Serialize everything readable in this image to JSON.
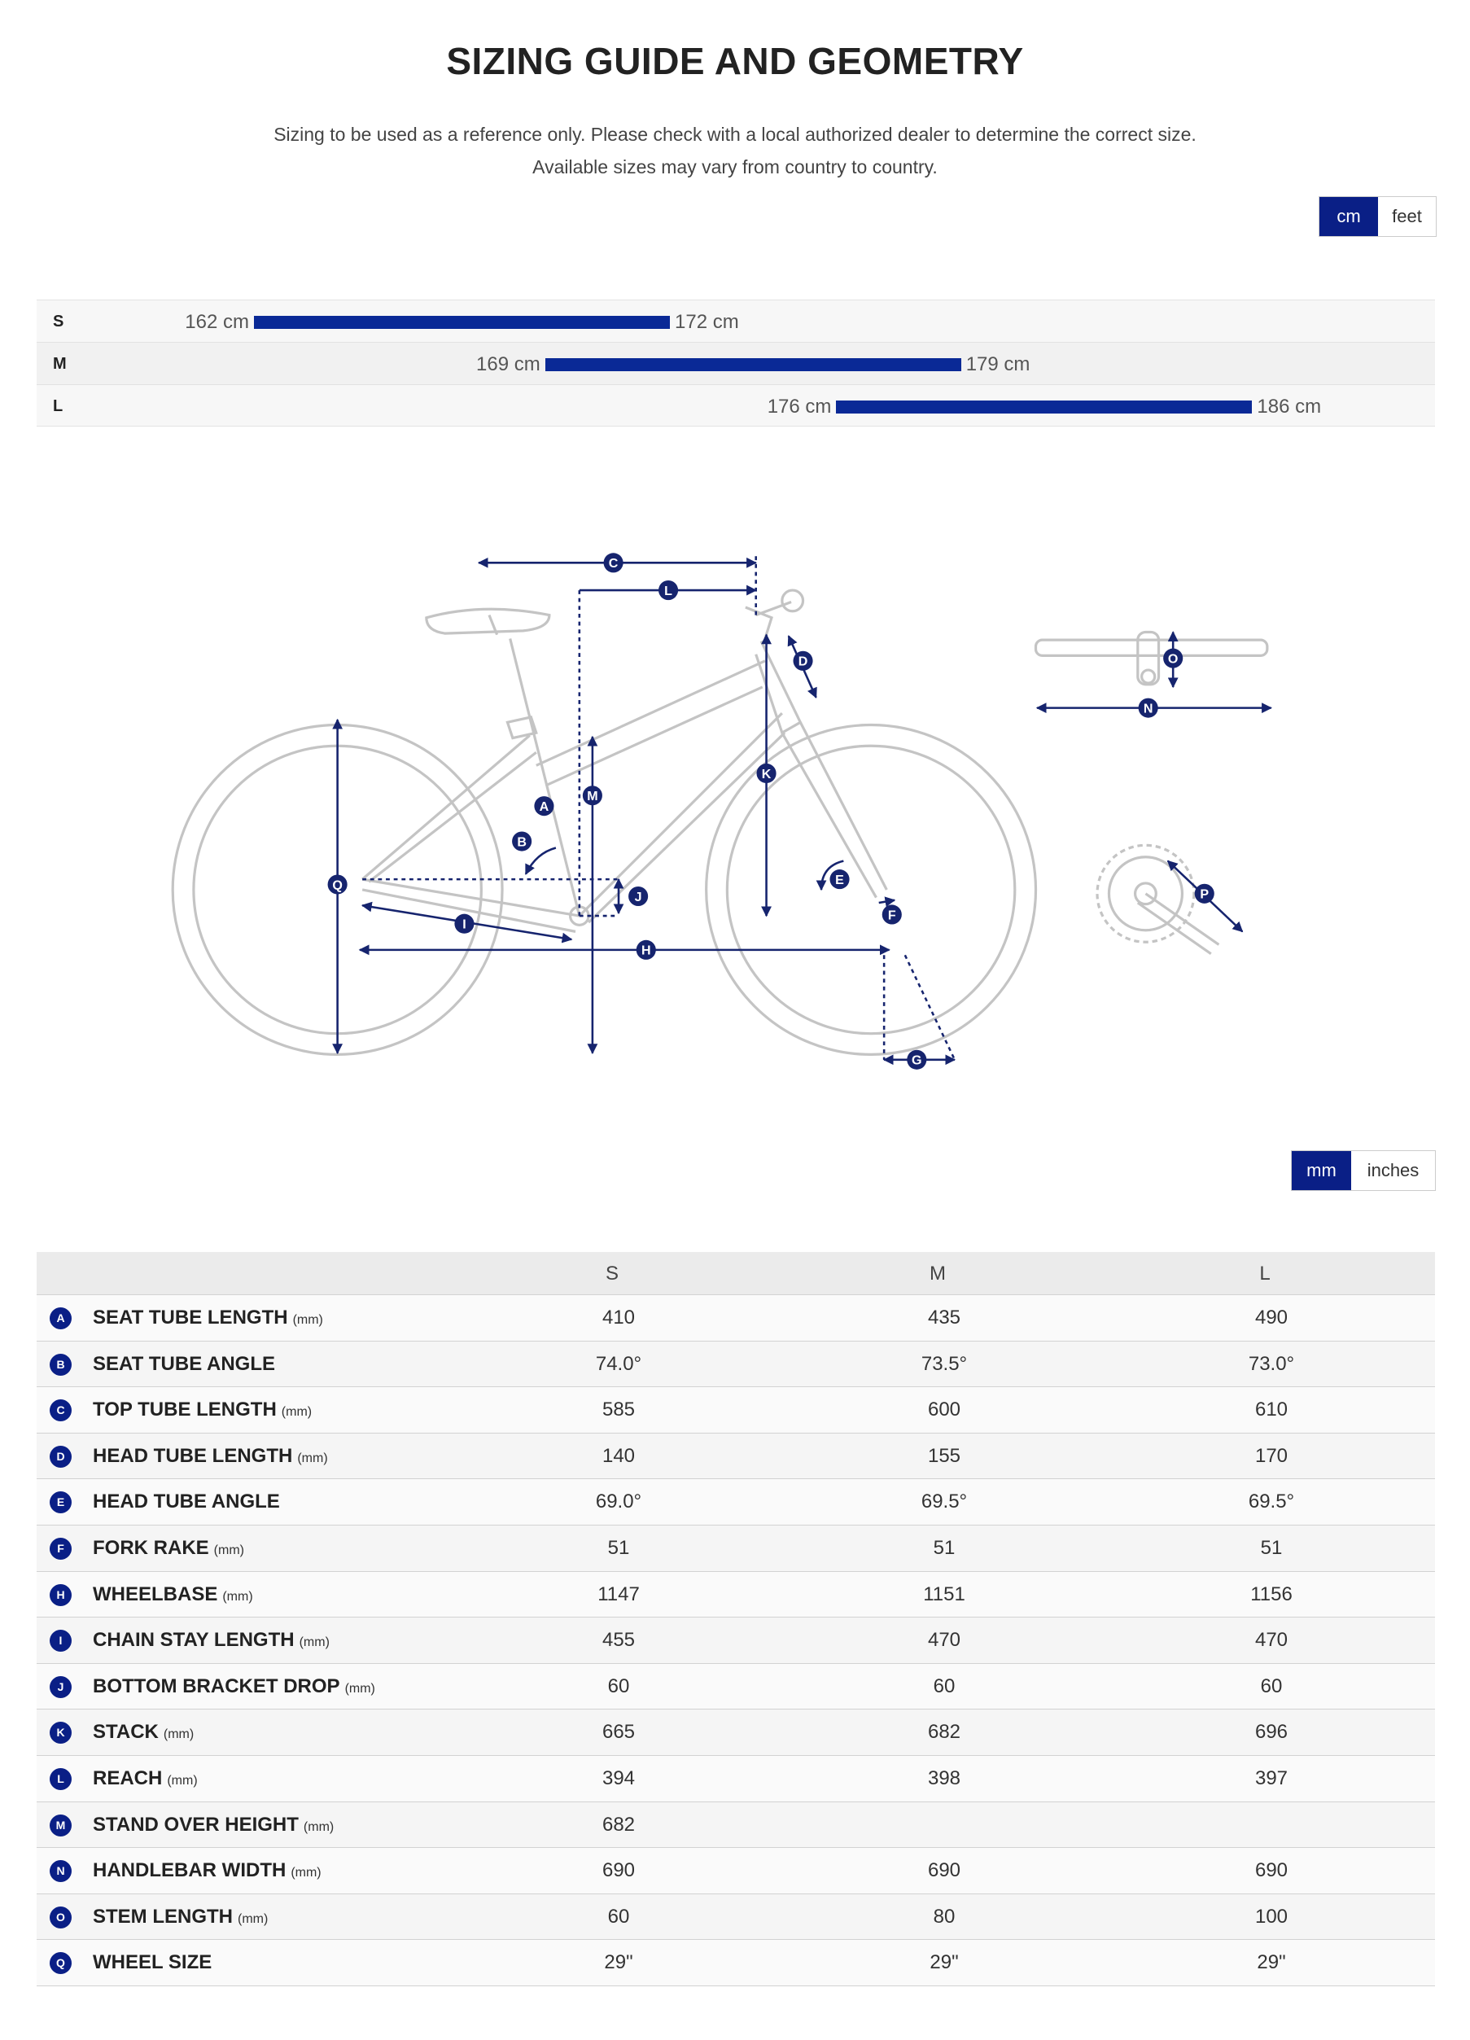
{
  "header": {
    "title": "SIZING GUIDE AND GEOMETRY",
    "subtitle_lines": [
      "Sizing to be used as a reference only. Please check with a local authorized dealer to determine the correct size.",
      "Available sizes may vary from country to country."
    ]
  },
  "height_units": {
    "options": [
      "cm",
      "feet"
    ],
    "selected": 0
  },
  "size_chart": {
    "rows": [
      {
        "size": "S",
        "min": {
          "value": 162,
          "label": "162 cm"
        },
        "max": {
          "value": 172,
          "label": "172 cm"
        }
      },
      {
        "size": "M",
        "min": {
          "value": 169,
          "label": "169 cm"
        },
        "max": {
          "value": 179,
          "label": "179 cm"
        }
      },
      {
        "size": "L",
        "min": {
          "value": 176,
          "label": "176 cm"
        },
        "max": {
          "value": 186,
          "label": "186 cm"
        }
      }
    ]
  },
  "diagram": {
    "labels": [
      "C",
      "L",
      "D",
      "O",
      "N",
      "M",
      "K",
      "A",
      "B",
      "Q",
      "E",
      "J",
      "I",
      "F",
      "H",
      "P",
      "G"
    ]
  },
  "geometry_units": {
    "options": [
      "mm",
      "inches"
    ],
    "selected": 0
  },
  "table": {
    "columns": [
      "S",
      "M",
      "L"
    ],
    "rows": [
      {
        "letter": "A",
        "name": "SEAT TUBE LENGTH",
        "unit": "(mm)",
        "values": [
          "410",
          "435",
          "490"
        ]
      },
      {
        "letter": "B",
        "name": "SEAT TUBE ANGLE",
        "values": [
          "74.0°",
          "73.5°",
          "73.0°"
        ]
      },
      {
        "letter": "C",
        "name": "TOP TUBE LENGTH",
        "unit": "(mm)",
        "values": [
          "585",
          "600",
          "610"
        ]
      },
      {
        "letter": "D",
        "name": "HEAD TUBE LENGTH",
        "unit": "(mm)",
        "values": [
          "140",
          "155",
          "170"
        ]
      },
      {
        "letter": "E",
        "name": "HEAD TUBE ANGLE",
        "values": [
          "69.0°",
          "69.5°",
          "69.5°"
        ]
      },
      {
        "letter": "F",
        "name": "FORK RAKE",
        "unit": "(mm)",
        "values": [
          "51",
          "51",
          "51"
        ]
      },
      {
        "letter": "H",
        "name": "WHEELBASE",
        "unit": "(mm)",
        "values": [
          "1147",
          "1151",
          "1156"
        ]
      },
      {
        "letter": "I",
        "name": "CHAIN STAY LENGTH",
        "unit": "(mm)",
        "values": [
          "455",
          "470",
          "470"
        ]
      },
      {
        "letter": "J",
        "name": "BOTTOM BRACKET DROP",
        "unit": "(mm)",
        "values": [
          "60",
          "60",
          "60"
        ]
      },
      {
        "letter": "K",
        "name": "STACK",
        "unit": "(mm)",
        "values": [
          "665",
          "682",
          "696"
        ]
      },
      {
        "letter": "L",
        "name": "REACH",
        "unit": "(mm)",
        "values": [
          "394",
          "398",
          "397"
        ]
      },
      {
        "letter": "M",
        "name": "STAND OVER HEIGHT",
        "unit": "(mm)",
        "values": [
          "682",
          null,
          null
        ]
      },
      {
        "letter": "N",
        "name": "HANDLEBAR WIDTH",
        "unit": "(mm)",
        "values": [
          "690",
          "690",
          "690"
        ]
      },
      {
        "letter": "O",
        "name": "STEM LENGTH",
        "unit": "(mm)",
        "values": [
          "60",
          "80",
          "100"
        ]
      },
      {
        "letter": "Q",
        "name": "WHEEL SIZE",
        "values": [
          "29\"",
          "29\"",
          "29\""
        ]
      }
    ]
  }
}
